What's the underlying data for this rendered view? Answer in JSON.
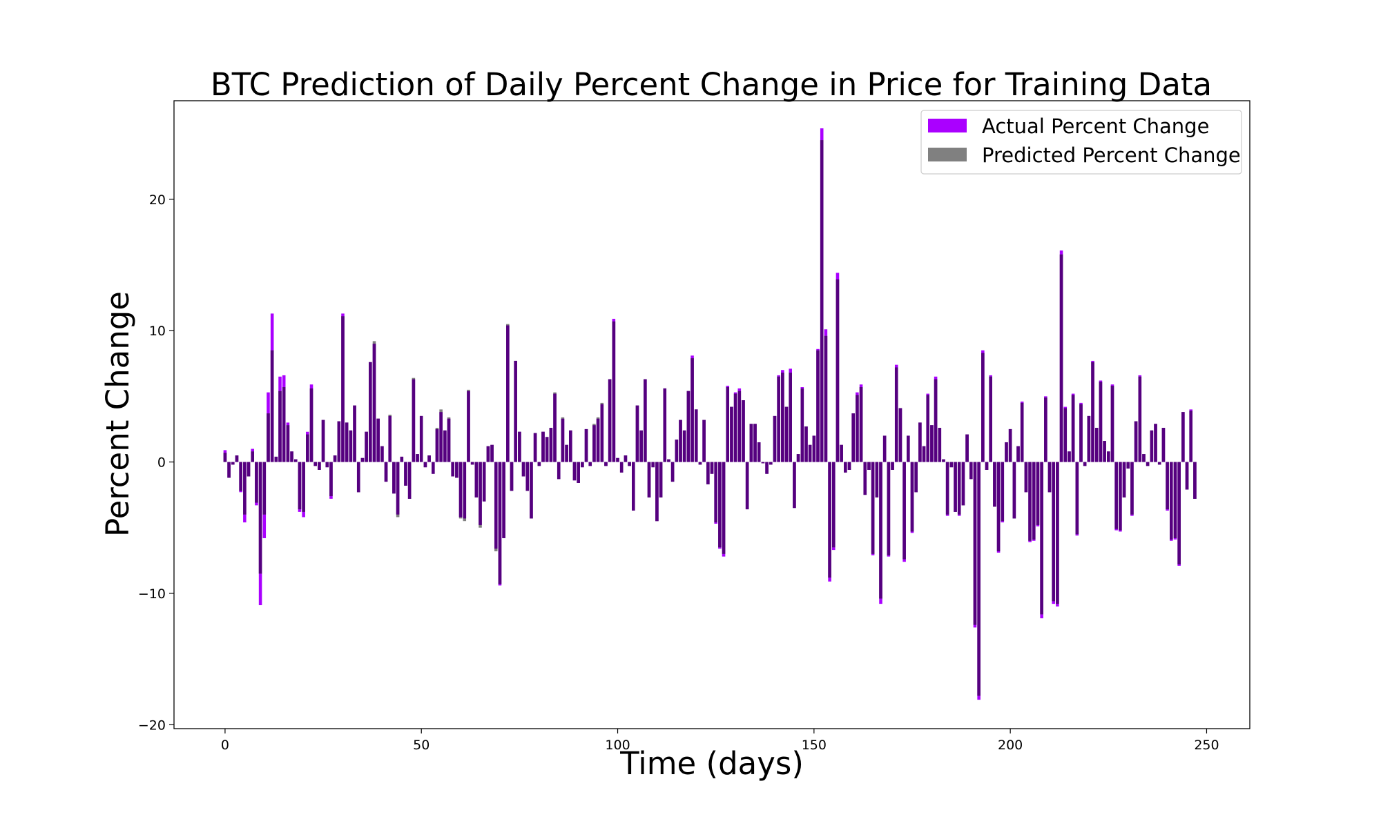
{
  "chart_data": {
    "type": "bar",
    "title": "BTC Prediction of Daily Percent Change in Price for Training Data",
    "xlabel": "Time (days)",
    "ylabel": "Percent Change",
    "xlim": [
      -13,
      261
    ],
    "ylim": [
      -20.3,
      27.5
    ],
    "x_ticks": [
      0,
      50,
      100,
      150,
      200,
      250
    ],
    "y_ticks": [
      -20,
      -10,
      0,
      10,
      20
    ],
    "grid": false,
    "legend_position": "top-right",
    "colors": {
      "actual": "#aa00ff",
      "predicted": "#808080",
      "overlap": "#55007f"
    },
    "series": [
      {
        "name": "Actual Percent Change",
        "color": "#aa00ff",
        "values": [
          0.9,
          -1.2,
          -0.2,
          0.5,
          -2.3,
          -4.6,
          -1.1,
          1.0,
          -3.3,
          -10.9,
          -5.8,
          5.3,
          11.3,
          0.4,
          6.5,
          6.6,
          3.0,
          0.8,
          0.2,
          -3.8,
          -4.2,
          2.3,
          5.9,
          -0.3,
          -0.6,
          3.2,
          -0.4,
          -2.8,
          0.5,
          3.1,
          11.3,
          3.0,
          2.4,
          4.3,
          -2.3,
          0.3,
          2.3,
          7.6,
          9.0,
          3.3,
          1.2,
          -1.5,
          3.5,
          -2.4,
          -4.0,
          0.4,
          -1.8,
          -2.8,
          6.3,
          0.6,
          3.5,
          -0.4,
          0.5,
          -0.9,
          2.5,
          3.8,
          2.4,
          3.3,
          -1.1,
          -1.2,
          -4.2,
          -4.3,
          5.4,
          -0.2,
          -2.7,
          -4.8,
          -3.0,
          1.2,
          1.3,
          -6.6,
          -9.4,
          -5.8,
          10.4,
          -2.2,
          7.7,
          2.3,
          -1.1,
          -2.2,
          -4.3,
          2.2,
          -0.3,
          2.3,
          1.9,
          2.6,
          5.2,
          -1.3,
          3.3,
          1.3,
          2.4,
          -1.4,
          -1.6,
          -0.4,
          2.5,
          -0.3,
          2.8,
          3.3,
          4.4,
          -0.3,
          6.3,
          10.9,
          0.3,
          -0.8,
          0.5,
          -0.3,
          -3.7,
          4.3,
          2.4,
          6.3,
          -2.7,
          -0.4,
          -4.5,
          -2.7,
          5.6,
          0.2,
          -1.5,
          1.7,
          3.2,
          2.4,
          5.4,
          8.1,
          4.0,
          -0.2,
          3.2,
          -1.7,
          -0.9,
          -4.7,
          -6.6,
          -7.2,
          5.8,
          4.2,
          5.3,
          5.6,
          4.7,
          -3.6,
          2.9,
          2.9,
          1.5,
          -0.1,
          -0.9,
          -0.2,
          3.5,
          6.6,
          7.0,
          4.2,
          7.1,
          -3.5,
          0.6,
          5.7,
          2.7,
          1.3,
          2.0,
          8.6,
          25.4,
          10.1,
          -9.1,
          -6.7,
          14.4,
          1.3,
          -0.8,
          -0.6,
          3.7,
          5.3,
          5.9,
          -2.5,
          -0.6,
          -7.1,
          -2.7,
          -10.8,
          2.0,
          -7.2,
          -0.6,
          7.4,
          4.1,
          -7.6,
          2.0,
          -5.4,
          -2.3,
          3.0,
          1.2,
          5.2,
          2.8,
          6.5,
          2.6,
          0.2,
          -4.1,
          -0.4,
          -3.8,
          -4.1,
          -3.3,
          2.1,
          -1.3,
          -12.6,
          -18.1,
          8.5,
          -0.6,
          6.6,
          -3.4,
          -6.9,
          -4.6,
          1.5,
          2.5,
          -4.3,
          1.2,
          4.6,
          -2.3,
          -6.1,
          -6.0,
          -4.9,
          -11.9,
          5.0,
          -2.3,
          -10.8,
          -11.0,
          16.1,
          4.2,
          0.8,
          5.2,
          -5.6,
          4.5,
          -0.3,
          3.5,
          7.7,
          2.6,
          6.2,
          1.6,
          0.8,
          5.9,
          -5.2,
          -5.3,
          -2.7,
          -0.5,
          -4.1,
          3.1,
          6.6,
          0.6,
          -0.3,
          2.4,
          2.9,
          -0.2,
          2.6,
          -3.7,
          -6.0,
          -5.9,
          -7.9,
          3.8,
          -2.1,
          4.0,
          -2.8
        ]
      },
      {
        "name": "Predicted Percent Change",
        "color": "#808080",
        "values": [
          0.7,
          -1.2,
          -0.2,
          0.5,
          -2.2,
          -4.0,
          -1.1,
          0.8,
          -3.1,
          -8.5,
          -4.0,
          3.7,
          8.5,
          0.4,
          5.4,
          5.7,
          2.8,
          0.8,
          0.2,
          -3.6,
          -3.8,
          2.1,
          5.6,
          -0.3,
          -0.6,
          3.2,
          -0.4,
          -2.6,
          0.5,
          3.1,
          11.1,
          3.0,
          2.4,
          4.3,
          -2.3,
          0.3,
          2.3,
          7.6,
          9.2,
          3.3,
          1.2,
          -1.5,
          3.6,
          -2.4,
          -4.2,
          0.4,
          -1.8,
          -2.8,
          6.4,
          0.6,
          3.5,
          -0.4,
          0.5,
          -0.9,
          2.6,
          4.0,
          2.4,
          3.4,
          -1.1,
          -1.2,
          -4.3,
          -4.5,
          5.5,
          -0.2,
          -2.7,
          -5.0,
          -3.0,
          1.2,
          1.3,
          -6.8,
          -9.3,
          -5.8,
          10.5,
          -2.2,
          7.7,
          2.3,
          -1.1,
          -2.2,
          -4.3,
          2.2,
          -0.3,
          2.3,
          1.9,
          2.6,
          5.3,
          -1.3,
          3.4,
          1.3,
          2.4,
          -1.4,
          -1.6,
          -0.4,
          2.5,
          -0.3,
          2.9,
          3.4,
          4.5,
          -0.3,
          6.3,
          10.7,
          0.3,
          -0.8,
          0.5,
          -0.3,
          -3.7,
          4.3,
          2.4,
          6.3,
          -2.7,
          -0.4,
          -4.5,
          -2.7,
          5.6,
          0.2,
          -1.5,
          1.7,
          3.2,
          2.4,
          5.4,
          7.9,
          4.0,
          -0.2,
          3.2,
          -1.7,
          -0.9,
          -4.6,
          -6.5,
          -7.0,
          5.7,
          4.2,
          5.2,
          5.4,
          4.7,
          -3.6,
          2.9,
          2.9,
          1.5,
          -0.1,
          -0.9,
          -0.2,
          3.5,
          6.5,
          6.8,
          4.2,
          6.8,
          -3.5,
          0.6,
          5.6,
          2.7,
          1.3,
          2.0,
          8.5,
          24.5,
          9.6,
          -8.8,
          -6.5,
          13.9,
          1.3,
          -0.8,
          -0.6,
          3.7,
          5.1,
          5.7,
          -2.5,
          -0.6,
          -7.0,
          -2.7,
          -10.4,
          2.0,
          -7.1,
          -0.6,
          7.2,
          4.1,
          -7.4,
          2.0,
          -5.3,
          -2.3,
          3.0,
          1.2,
          5.1,
          2.8,
          6.3,
          2.6,
          0.2,
          -4.0,
          -0.4,
          -3.8,
          -4.0,
          -3.3,
          2.1,
          -1.3,
          -12.4,
          -17.8,
          8.3,
          -0.6,
          6.5,
          -3.4,
          -6.8,
          -4.5,
          1.5,
          2.5,
          -4.3,
          1.2,
          4.5,
          -2.3,
          -6.0,
          -5.9,
          -4.8,
          -11.6,
          4.9,
          -2.3,
          -10.6,
          -10.8,
          15.8,
          4.1,
          0.8,
          5.1,
          -5.5,
          4.4,
          -0.3,
          3.5,
          7.6,
          2.6,
          6.1,
          1.6,
          0.8,
          5.8,
          -5.1,
          -5.2,
          -2.7,
          -0.5,
          -4.0,
          3.1,
          6.5,
          0.6,
          -0.3,
          2.4,
          2.9,
          -0.2,
          2.6,
          -3.6,
          -5.9,
          -5.8,
          -7.8,
          3.8,
          -2.1,
          3.9,
          -2.8
        ]
      }
    ]
  }
}
